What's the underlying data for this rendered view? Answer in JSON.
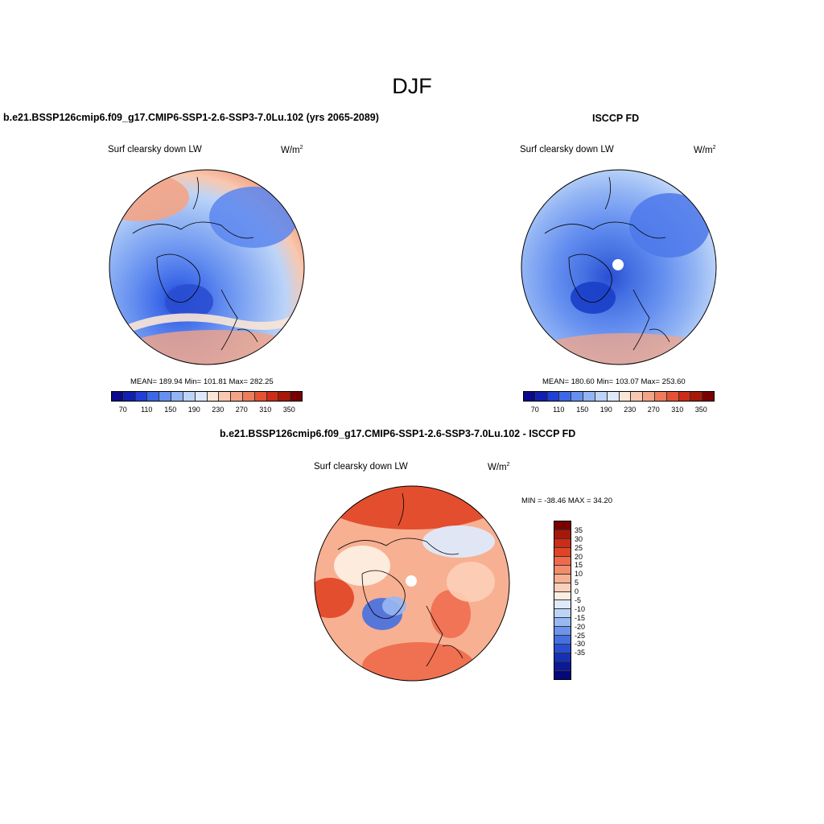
{
  "main_title": "DJF",
  "panels": {
    "model": {
      "title": "b.e21.BSSP126cmip6.f09_g17.CMIP6-SSP1-2.6-SSP3-7.0Lu.102 (yrs 2065-2089)",
      "variable": "Surf clearsky down LW",
      "units": "W/m",
      "units_sup": "2",
      "stats": "MEAN= 189.94  Min= 101.81  Max= 282.25"
    },
    "obs": {
      "title": "ISCCP FD",
      "variable": "Surf clearsky down LW",
      "units": "W/m",
      "units_sup": "2",
      "stats": "MEAN= 180.60  Min= 103.07  Max= 253.60"
    },
    "diff": {
      "title": "b.e21.BSSP126cmip6.f09_g17.CMIP6-SSP1-2.6-SSP3-7.0Lu.102 - ISCCP FD",
      "variable": "Surf clearsky down LW",
      "units": "W/m",
      "units_sup": "2",
      "stats": "MIN = -38.46 MAX =  34.20"
    }
  },
  "colorbar_abs": {
    "colors": [
      "#0a0a8a",
      "#1020b0",
      "#2040d8",
      "#3c68e8",
      "#6690f0",
      "#92b4f4",
      "#bcd4f8",
      "#dee8fa",
      "#fae6d6",
      "#f8c8b0",
      "#f4a486",
      "#ee7c5c",
      "#e45234",
      "#cc2c18",
      "#a81808",
      "#7a0000"
    ],
    "tick_labels": [
      "70",
      "110",
      "150",
      "190",
      "230",
      "270",
      "310",
      "350"
    ]
  },
  "colorbar_diff": {
    "colors": [
      "#7a0000",
      "#a81808",
      "#cc2c18",
      "#e04424",
      "#ee6a4a",
      "#f48c6c",
      "#f8b092",
      "#fcd0b8",
      "#fdeee2",
      "#dee9fa",
      "#bcd4f8",
      "#98b8f2",
      "#6c94ec",
      "#4470e2",
      "#2a4ed2",
      "#1630b4",
      "#0c1896",
      "#04087a"
    ],
    "tick_labels": [
      "35",
      "30",
      "25",
      "20",
      "15",
      "10",
      "5",
      "0",
      "-5",
      "-10",
      "-15",
      "-20",
      "-25",
      "-30",
      "-35"
    ]
  }
}
